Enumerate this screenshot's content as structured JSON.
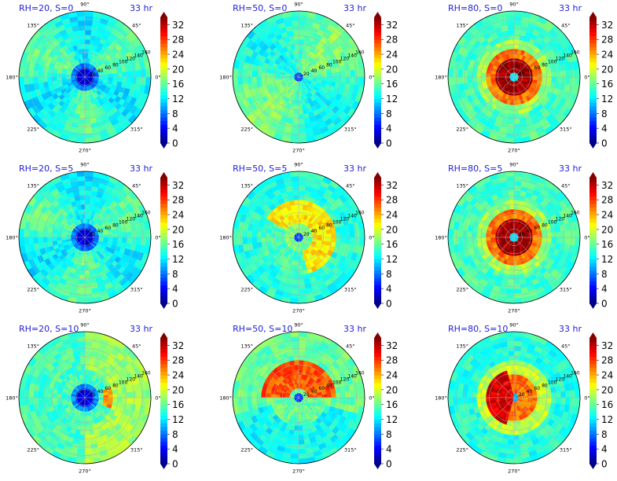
{
  "chart_data": [
    {
      "type": "heatmap",
      "title_left": "RH=20, S=0",
      "title_right": "33 hr",
      "pattern": "low_center",
      "angle_labels": [
        "90°",
        "45°",
        "0°",
        "315°",
        "270°",
        "225°",
        "180°",
        "135°"
      ],
      "radial_labels": [
        "20",
        "40",
        "60",
        "80",
        "100",
        "120",
        "140",
        "160"
      ],
      "colorbar_ticks": [
        "0",
        "4",
        "8",
        "12",
        "16",
        "20",
        "24",
        "28",
        "32"
      ],
      "colorbar_range": [
        0,
        34
      ]
    },
    {
      "type": "heatmap",
      "title_left": "RH=50, S=0",
      "title_right": "33 hr",
      "pattern": "uniform",
      "angle_labels": [
        "90°",
        "45°",
        "0°",
        "315°",
        "270°",
        "225°",
        "180°",
        "135°"
      ],
      "radial_labels": [
        "20",
        "40",
        "60",
        "80",
        "100",
        "120",
        "140",
        "160"
      ],
      "colorbar_ticks": [
        "0",
        "4",
        "8",
        "12",
        "16",
        "20",
        "24",
        "28",
        "32"
      ],
      "colorbar_range": [
        0,
        34
      ]
    },
    {
      "type": "heatmap",
      "title_left": "RH=80, S=0",
      "title_right": "33 hr",
      "pattern": "strong_core",
      "angle_labels": [
        "90°",
        "45°",
        "0°",
        "315°",
        "270°",
        "225°",
        "180°",
        "135°"
      ],
      "radial_labels": [
        "20",
        "40",
        "60",
        "80",
        "100",
        "120",
        "140",
        "160"
      ],
      "colorbar_ticks": [
        "0",
        "4",
        "8",
        "12",
        "16",
        "20",
        "24",
        "28",
        "32"
      ],
      "colorbar_range": [
        0,
        34
      ]
    },
    {
      "type": "heatmap",
      "title_left": "RH=20, S=5",
      "title_right": "33 hr",
      "pattern": "low_center",
      "angle_labels": [
        "90°",
        "45°",
        "0°",
        "315°",
        "270°",
        "225°",
        "180°",
        "135°"
      ],
      "radial_labels": [
        "20",
        "40",
        "60",
        "80",
        "100",
        "120",
        "140",
        "160"
      ],
      "colorbar_ticks": [
        "0",
        "4",
        "8",
        "12",
        "16",
        "20",
        "24",
        "28",
        "32"
      ],
      "colorbar_range": [
        0,
        34
      ]
    },
    {
      "type": "heatmap",
      "title_left": "RH=50, S=5",
      "title_right": "33 hr",
      "pattern": "ring_east",
      "angle_labels": [
        "90°",
        "45°",
        "0°",
        "315°",
        "270°",
        "225°",
        "180°",
        "135°"
      ],
      "radial_labels": [
        "20",
        "40",
        "60",
        "80",
        "100",
        "120",
        "140",
        "160"
      ],
      "colorbar_ticks": [
        "0",
        "4",
        "8",
        "12",
        "16",
        "20",
        "24",
        "28",
        "32"
      ],
      "colorbar_range": [
        0,
        34
      ]
    },
    {
      "type": "heatmap",
      "title_left": "RH=80, S=5",
      "title_right": "33 hr",
      "pattern": "strong_core",
      "angle_labels": [
        "90°",
        "45°",
        "0°",
        "315°",
        "270°",
        "225°",
        "180°",
        "135°"
      ],
      "radial_labels": [
        "20",
        "40",
        "60",
        "80",
        "100",
        "120",
        "140",
        "160"
      ],
      "colorbar_ticks": [
        "0",
        "4",
        "8",
        "12",
        "16",
        "20",
        "24",
        "28",
        "32"
      ],
      "colorbar_range": [
        0,
        34
      ]
    },
    {
      "type": "heatmap",
      "title_left": "RH=20, S=10",
      "title_right": "33 hr",
      "pattern": "low_center_east",
      "angle_labels": [
        "90°",
        "45°",
        "0°",
        "315°",
        "270°",
        "225°",
        "180°",
        "135°"
      ],
      "radial_labels": [
        "20",
        "40",
        "60",
        "80",
        "100",
        "120",
        "140",
        "160"
      ],
      "colorbar_ticks": [
        "0",
        "4",
        "8",
        "12",
        "16",
        "20",
        "24",
        "28",
        "32"
      ],
      "colorbar_range": [
        0,
        34
      ]
    },
    {
      "type": "heatmap",
      "title_left": "RH=50, S=10",
      "title_right": "33 hr",
      "pattern": "north_arc",
      "angle_labels": [
        "90°",
        "45°",
        "0°",
        "315°",
        "270°",
        "225°",
        "180°",
        "135°"
      ],
      "radial_labels": [
        "20",
        "40",
        "60",
        "80",
        "100",
        "120",
        "140",
        "160"
      ],
      "colorbar_ticks": [
        "0",
        "4",
        "8",
        "12",
        "16",
        "20",
        "24",
        "28",
        "32"
      ],
      "colorbar_range": [
        0,
        34
      ]
    },
    {
      "type": "heatmap",
      "title_left": "RH=80, S=10",
      "title_right": "33 hr",
      "pattern": "core_west",
      "angle_labels": [
        "90°",
        "45°",
        "0°",
        "315°",
        "270°",
        "225°",
        "180°",
        "135°"
      ],
      "radial_labels": [
        "20",
        "40",
        "60",
        "80",
        "100",
        "120",
        "140",
        "160"
      ],
      "colorbar_ticks": [
        "0",
        "4",
        "8",
        "12",
        "16",
        "20",
        "24",
        "28",
        "32"
      ],
      "colorbar_range": [
        0,
        34
      ]
    }
  ]
}
